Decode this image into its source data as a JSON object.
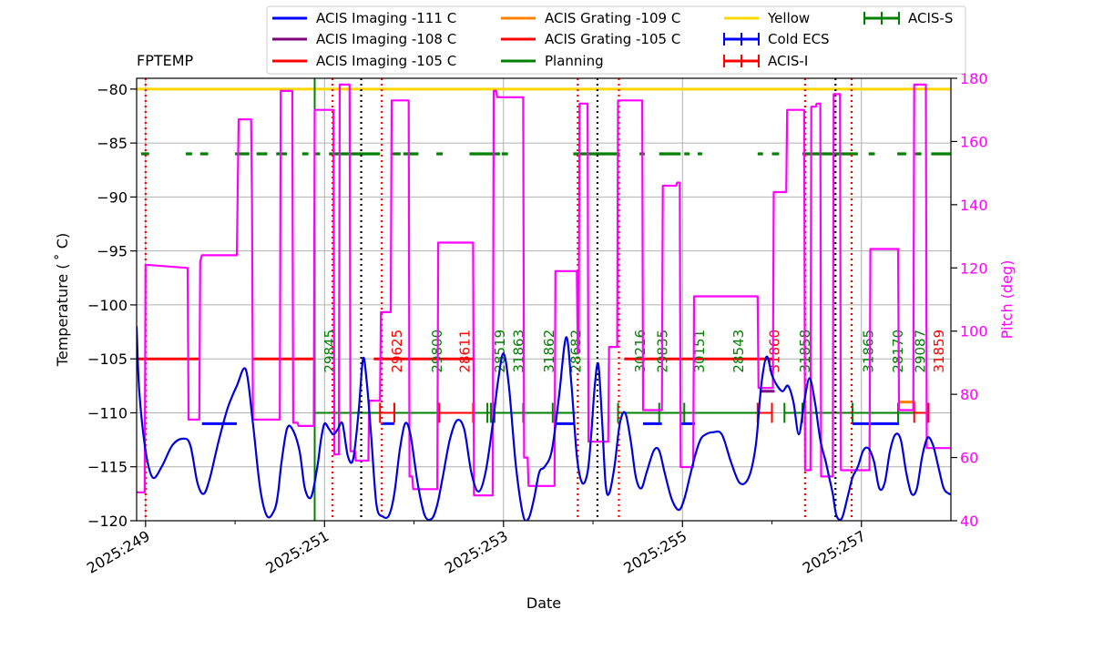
{
  "chart_data": {
    "type": "line",
    "title": "FPTEMP",
    "xlabel": "Date",
    "ylabel": "Temperature ($^\\circ$C)",
    "ylabel_display": "Temperature ( ˚ C)",
    "y2label": "Pitch (deg)",
    "xlim": [
      248.9,
      258.0
    ],
    "ylim": [
      -120,
      -79
    ],
    "y2lim": [
      40,
      180
    ],
    "grid": true,
    "legend_position": "top",
    "x_ticks": [
      {
        "value": 249,
        "label": "2025:249"
      },
      {
        "value": 251,
        "label": "2025:251"
      },
      {
        "value": 253,
        "label": "2025:253"
      },
      {
        "value": 255,
        "label": "2025:255"
      },
      {
        "value": 257,
        "label": "2025:257"
      }
    ],
    "x_minor_ticks": [
      250,
      252,
      254,
      256
    ],
    "y_ticks": [
      -120,
      -115,
      -110,
      -105,
      -100,
      -95,
      -90,
      -85,
      -80
    ],
    "y_tick_labels": [
      "−120",
      "−115",
      "−110",
      "−105",
      "−100",
      "−95",
      "−90",
      "−85",
      "−80"
    ],
    "y2_ticks": [
      40,
      60,
      80,
      100,
      120,
      140,
      160,
      180
    ],
    "colors": {
      "fptemp": "#0000dd",
      "pitch": "#ff00ff",
      "imaging111": "#0000ff",
      "imaging108": "#800080",
      "red": "#ff0000",
      "grating109": "#ff8000",
      "planning": "#008000",
      "yellow": "#ffd700",
      "acis_i": "#ff0000",
      "acis_s": "#008000",
      "cold_ecs": "#0000ff",
      "tick_y2": "#ff00ff"
    },
    "legend": [
      {
        "label": "ACIS Imaging -111 C",
        "color": "#0000ff",
        "marker": false
      },
      {
        "label": "ACIS Imaging -108 C",
        "color": "#800080",
        "marker": false
      },
      {
        "label": "ACIS Imaging -105 C",
        "color": "#ff0000",
        "marker": false
      },
      {
        "label": "ACIS Grating -109 C",
        "color": "#ff8000",
        "marker": false
      },
      {
        "label": "ACIS Grating -105 C",
        "color": "#ff0000",
        "marker": false
      },
      {
        "label": "Planning",
        "color": "#008000",
        "marker": false
      },
      {
        "label": "Yellow",
        "color": "#ffd700",
        "marker": false
      },
      {
        "label": "Cold ECS",
        "color": "#0000ff",
        "marker": true
      },
      {
        "label": "ACIS-I",
        "color": "#ff0000",
        "marker": true
      },
      {
        "label": "ACIS-S",
        "color": "#008000",
        "marker": true
      }
    ],
    "yellow_limit": -80,
    "planning_limit": -86,
    "series": [
      {
        "name": "FPTEMP",
        "axis": "left",
        "color": "#0000dd",
        "x": [
          248.9,
          248.93,
          249.0,
          249.08,
          249.18,
          249.3,
          249.42,
          249.5,
          249.58,
          249.65,
          249.72,
          249.82,
          249.92,
          250.02,
          250.12,
          250.2,
          250.28,
          250.36,
          250.44,
          250.48,
          250.52,
          250.58,
          250.64,
          250.72,
          250.78,
          250.85,
          250.92,
          250.96,
          251.0,
          251.05,
          251.1,
          251.15,
          251.2,
          251.26,
          251.32,
          251.38,
          251.43,
          251.47,
          251.52,
          251.58,
          251.65,
          251.72,
          251.78,
          251.84,
          251.9,
          251.96,
          252.04,
          252.12,
          252.2,
          252.26,
          252.32,
          252.4,
          252.48,
          252.56,
          252.64,
          252.72,
          252.8,
          252.88,
          252.94,
          253.0,
          253.06,
          253.14,
          253.22,
          253.28,
          253.34,
          253.4,
          253.46,
          253.54,
          253.62,
          253.7,
          253.76,
          253.82,
          253.88,
          253.94,
          253.98,
          254.02,
          254.06,
          254.1,
          254.14,
          254.18,
          254.24,
          254.3,
          254.36,
          254.42,
          254.48,
          254.54,
          254.6,
          254.68,
          254.74,
          254.8,
          254.88,
          254.96,
          255.02,
          255.08,
          255.14,
          255.2,
          255.26,
          255.34,
          255.44,
          255.54,
          255.64,
          255.74,
          255.82,
          255.88,
          255.94,
          256.0,
          256.06,
          256.12,
          256.18,
          256.24,
          256.3,
          256.36,
          256.42,
          256.48,
          256.54,
          256.6,
          256.64,
          256.68,
          256.72,
          256.78,
          256.84,
          256.9,
          256.96,
          257.02,
          257.08,
          257.14,
          257.2,
          257.26,
          257.32,
          257.38,
          257.44,
          257.5,
          257.56,
          257.62,
          257.68,
          257.74,
          257.8,
          257.86,
          257.92,
          257.98,
          258.0
        ],
        "values": [
          -102.0,
          -108.0,
          -113.5,
          -116.0,
          -115.0,
          -113.0,
          -112.4,
          -113.0,
          -116.5,
          -117.5,
          -116.0,
          -112.5,
          -109.5,
          -107.5,
          -106.0,
          -111.0,
          -117.0,
          -119.6,
          -119.0,
          -117.5,
          -114.5,
          -111.5,
          -111.5,
          -113.5,
          -117.0,
          -117.8,
          -115.0,
          -112.5,
          -111.0,
          -111.5,
          -112.0,
          -111.5,
          -111.0,
          -114.0,
          -114.3,
          -110.0,
          -105.0,
          -107.0,
          -112.0,
          -118.5,
          -119.6,
          -119.5,
          -117.5,
          -113.5,
          -111.0,
          -112.0,
          -116.5,
          -119.5,
          -119.8,
          -118.5,
          -116.0,
          -112.5,
          -110.7,
          -111.5,
          -115.5,
          -117.3,
          -115.5,
          -111.0,
          -107.0,
          -104.5,
          -107.5,
          -115.0,
          -119.5,
          -119.8,
          -118.0,
          -115.5,
          -115.0,
          -113.5,
          -108.5,
          -103.0,
          -107.5,
          -114.0,
          -116.5,
          -115.5,
          -112.0,
          -107.5,
          -105.5,
          -110.5,
          -116.5,
          -117.5,
          -115.0,
          -111.0,
          -110.0,
          -112.5,
          -116.0,
          -117.0,
          -115.5,
          -113.5,
          -113.5,
          -115.5,
          -118.0,
          -119.0,
          -118.0,
          -116.0,
          -114.0,
          -112.5,
          -112.0,
          -111.8,
          -112.0,
          -114.5,
          -116.5,
          -116.0,
          -113.0,
          -107.5,
          -104.8,
          -106.5,
          -107.5,
          -108.0,
          -107.5,
          -109.0,
          -112.0,
          -109.0,
          -106.8,
          -109.0,
          -112.5,
          -114.5,
          -116.0,
          -117.5,
          -119.5,
          -119.8,
          -118.0,
          -116.0,
          -115.0,
          -113.5,
          -113.3,
          -114.5,
          -117.0,
          -116.5,
          -113.5,
          -112.0,
          -112.5,
          -115.5,
          -117.5,
          -117.0,
          -114.0,
          -112.3,
          -113.0,
          -115.0,
          -117.0,
          -117.5,
          -117.5
        ]
      },
      {
        "name": "Pitch (deg)",
        "axis": "right",
        "color": "#ff00ff",
        "x": [
          248.9,
          248.99,
          249.0,
          249.47,
          249.48,
          249.6,
          249.61,
          249.63,
          250.02,
          250.04,
          250.18,
          250.19,
          250.2,
          250.5,
          250.51,
          250.64,
          250.65,
          250.7,
          250.71,
          250.88,
          250.89,
          251.1,
          251.11,
          251.16,
          251.17,
          251.28,
          251.29,
          251.34,
          251.35,
          251.49,
          251.5,
          251.62,
          251.63,
          251.74,
          251.75,
          251.94,
          251.95,
          251.98,
          251.99,
          252.26,
          252.27,
          252.66,
          252.67,
          252.88,
          252.89,
          252.92,
          252.93,
          253.22,
          253.23,
          253.27,
          253.28,
          253.57,
          253.58,
          253.82,
          253.83,
          253.84,
          253.85,
          253.94,
          253.95,
          254.17,
          254.18,
          254.27,
          254.28,
          254.55,
          254.56,
          254.77,
          254.78,
          254.93,
          254.94,
          254.97,
          254.98,
          255.12,
          255.13,
          255.84,
          255.85,
          256.01,
          256.02,
          256.16,
          256.17,
          256.36,
          256.37,
          256.43,
          256.44,
          256.49,
          256.5,
          256.54,
          256.55,
          256.68,
          256.69,
          256.76,
          256.77,
          256.87,
          256.88,
          257.09,
          257.1,
          257.41,
          257.42,
          257.58,
          257.59,
          257.72,
          257.73,
          257.84,
          257.85,
          258.0
        ],
        "values": [
          49,
          49,
          121,
          120,
          72,
          72,
          122,
          124,
          124,
          167,
          167,
          140,
          72,
          72,
          176,
          176,
          71,
          71,
          70,
          70,
          170,
          170,
          61,
          61,
          178,
          178,
          62,
          62,
          59,
          59,
          78,
          78,
          106,
          106,
          173,
          173,
          54,
          54,
          50,
          50,
          128,
          128,
          48,
          48,
          176,
          176,
          174,
          174,
          60,
          60,
          51,
          51,
          119,
          119,
          93,
          93,
          172,
          172,
          65,
          65,
          95,
          95,
          173,
          173,
          75,
          75,
          146,
          146,
          147,
          147,
          57,
          57,
          111,
          111,
          82,
          82,
          144,
          144,
          170,
          170,
          56,
          56,
          171,
          171,
          172,
          172,
          54,
          54,
          175,
          175,
          56,
          56,
          56,
          56,
          126,
          126,
          75,
          75,
          178,
          178,
          63,
          63,
          63,
          63
        ]
      }
    ],
    "vertical_lines": {
      "red_dotted": [
        249.0,
        251.09,
        251.64,
        253.83,
        254.29,
        256.37,
        256.89
      ],
      "black_dotted": [
        251.41,
        254.05,
        256.71
      ],
      "green_solid": [
        250.89
      ]
    },
    "states": {
      "imaging111": [
        [
          249.63,
          250.02
        ],
        [
          251.63,
          251.78
        ],
        [
          253.58,
          253.8
        ],
        [
          254.56,
          254.77
        ],
        [
          254.98,
          255.14
        ],
        [
          256.9,
          257.42
        ]
      ],
      "red105": [
        [
          248.9,
          249.6
        ],
        [
          250.2,
          250.88
        ],
        [
          251.55,
          252.66
        ],
        [
          254.35,
          256.0
        ]
      ],
      "grating109": [
        [
          257.42,
          257.6
        ]
      ],
      "imaging108": [
        [
          255.87,
          256.03
        ]
      ]
    },
    "planning_segments": [
      [
        248.95,
        249.04
      ],
      [
        249.45,
        249.52
      ],
      [
        249.61,
        249.7
      ],
      [
        250.0,
        250.16
      ],
      [
        250.24,
        250.36
      ],
      [
        250.46,
        250.58
      ],
      [
        250.75,
        250.82
      ],
      [
        250.88,
        250.95
      ],
      [
        251.05,
        251.62
      ],
      [
        251.75,
        251.85
      ],
      [
        251.88,
        252.05
      ],
      [
        252.25,
        252.32
      ],
      [
        252.62,
        252.96
      ],
      [
        252.98,
        253.05
      ],
      [
        253.78,
        254.3
      ],
      [
        254.52,
        254.58
      ],
      [
        254.74,
        254.98
      ],
      [
        255.02,
        255.08
      ],
      [
        255.17,
        255.22
      ],
      [
        255.84,
        255.9
      ],
      [
        256.0,
        256.08
      ],
      [
        256.34,
        256.96
      ],
      [
        257.08,
        257.15
      ],
      [
        257.4,
        257.5
      ],
      [
        257.6,
        257.67
      ],
      [
        257.78,
        258.0
      ]
    ],
    "obsids": [
      {
        "label": "29845",
        "x": 251.05,
        "color": "#008000"
      },
      {
        "label": "29625",
        "x": 251.8,
        "color": "#ff0000"
      },
      {
        "label": "29800",
        "x": 252.25,
        "color": "#008000"
      },
      {
        "label": "28611",
        "x": 252.56,
        "color": "#ff0000"
      },
      {
        "label": "28519",
        "x": 252.95,
        "color": "#008000"
      },
      {
        "label": "31863",
        "x": 253.16,
        "color": "#008000"
      },
      {
        "label": "31862",
        "x": 253.5,
        "color": "#008000"
      },
      {
        "label": "28682",
        "x": 253.8,
        "color": "#008000"
      },
      {
        "label": "30216",
        "x": 254.52,
        "color": "#008000"
      },
      {
        "label": "29835",
        "x": 254.77,
        "color": "#008000"
      },
      {
        "label": "30151",
        "x": 255.18,
        "color": "#008000"
      },
      {
        "label": "28543",
        "x": 255.62,
        "color": "#008000"
      },
      {
        "label": "31860",
        "x": 256.02,
        "color": "#ff0000"
      },
      {
        "label": "31858",
        "x": 256.36,
        "color": "#008000"
      },
      {
        "label": "31865",
        "x": 257.07,
        "color": "#008000"
      },
      {
        "label": "28170",
        "x": 257.4,
        "color": "#008000"
      },
      {
        "label": "29087",
        "x": 257.65,
        "color": "#008000"
      },
      {
        "label": "31859",
        "x": 257.86,
        "color": "#ff0000"
      }
    ],
    "acis_s_obs": [
      [
        250.89,
        251.62
      ],
      [
        251.78,
        252.28
      ],
      [
        252.28,
        252.82
      ],
      [
        252.82,
        252.86
      ],
      [
        252.86,
        252.9
      ],
      [
        252.9,
        253.22
      ],
      [
        253.22,
        253.55
      ],
      [
        253.55,
        253.81
      ],
      [
        254.28,
        254.74
      ],
      [
        254.74,
        255.02
      ],
      [
        255.02,
        255.84
      ],
      [
        256.14,
        256.34
      ],
      [
        256.34,
        256.9
      ],
      [
        256.9,
        257.41
      ],
      [
        257.41,
        257.59
      ]
    ],
    "acis_i_obs": [
      [
        251.62,
        251.78
      ],
      [
        252.28,
        252.66
      ],
      [
        255.84,
        256.0
      ],
      [
        257.59,
        257.75
      ]
    ],
    "cold_ecs": []
  }
}
